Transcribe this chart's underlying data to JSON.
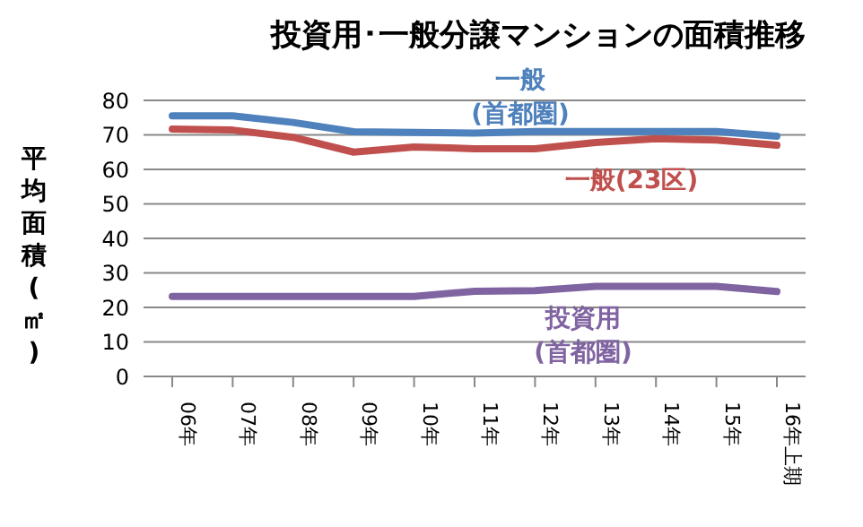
{
  "chart_data": {
    "type": "line",
    "title": "投資用･一般分譲マンションの面積推移",
    "ylabel": "平均面積(㎡)",
    "categories": [
      "06年",
      "07年",
      "08年",
      "09年",
      "10年",
      "11年",
      "12年",
      "13年",
      "14年",
      "15年",
      "16年上期"
    ],
    "series": [
      {
        "name": "一般\n(首都圏)",
        "color": "#4f81bd",
        "values": [
          75.5,
          75.5,
          73.6,
          70.9,
          70.7,
          70.5,
          71,
          71,
          71,
          71,
          69.6
        ]
      },
      {
        "name": "一般(23区)",
        "color": "#c0504d",
        "values": [
          71.7,
          71.4,
          69.3,
          65,
          66.5,
          66,
          66,
          67.8,
          68.9,
          68.5,
          67
        ]
      },
      {
        "name": "投資用\n(首都圏)",
        "color": "#8064a2",
        "values": [
          23.2,
          23.2,
          23.2,
          23.2,
          23.2,
          24.7,
          24.9,
          26.1,
          26.1,
          26.1,
          24.6
        ]
      }
    ],
    "ylim": [
      0,
      80
    ],
    "yticks": [
      0,
      10,
      20,
      30,
      40,
      50,
      60,
      70,
      80
    ],
    "grid": "y",
    "legend": false,
    "marker": "none",
    "line_style": "solid"
  }
}
